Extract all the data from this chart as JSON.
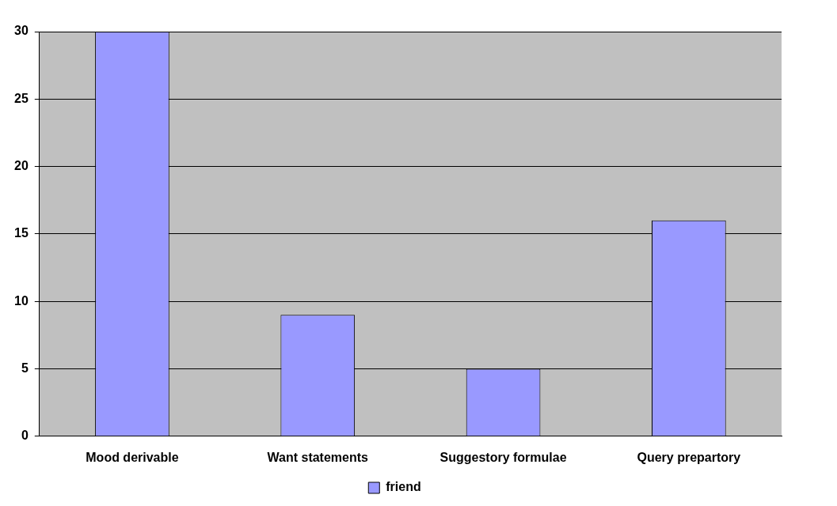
{
  "chart_data": {
    "type": "bar",
    "categories": [
      "Mood derivable",
      "Want statements",
      "Suggestory formulae",
      "Query prepartory"
    ],
    "series": [
      {
        "name": "friend",
        "color": "#9999ff",
        "values": [
          30,
          9,
          5,
          16
        ]
      }
    ],
    "ylim": [
      0,
      30
    ],
    "yticks": [
      0,
      5,
      10,
      15,
      20,
      25,
      30
    ],
    "grid": "y",
    "legend": "bottom"
  }
}
